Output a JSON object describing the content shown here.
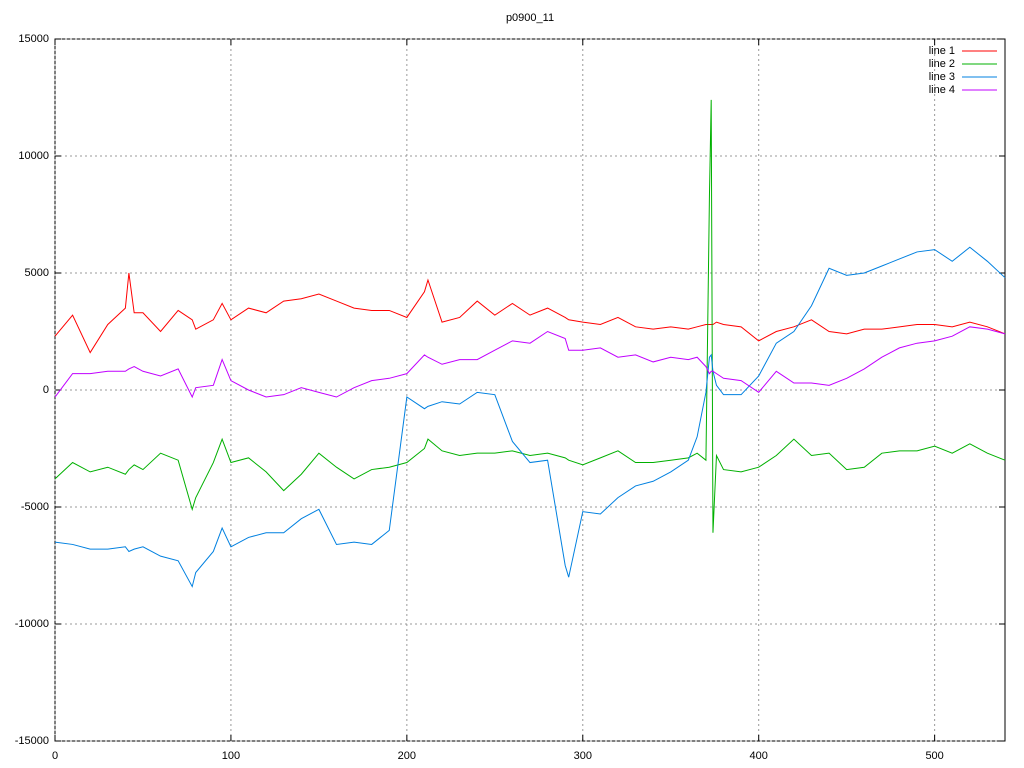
{
  "chart_data": {
    "type": "line",
    "title": "p0900_11",
    "x": [
      0,
      10,
      20,
      30,
      40,
      42,
      45,
      50,
      60,
      70,
      78,
      80,
      90,
      95,
      100,
      110,
      120,
      130,
      140,
      150,
      160,
      170,
      180,
      190,
      200,
      210,
      212,
      220,
      230,
      240,
      250,
      260,
      270,
      280,
      290,
      292,
      300,
      310,
      320,
      330,
      340,
      350,
      360,
      365,
      370,
      372,
      373,
      374,
      376,
      380,
      390,
      400,
      410,
      420,
      430,
      440,
      450,
      460,
      470,
      480,
      490,
      500,
      510,
      520,
      530,
      540
    ],
    "series": [
      {
        "name": "line 1",
        "color": "#ff0000",
        "values": [
          2300,
          3200,
          1600,
          2800,
          3500,
          5000,
          3300,
          3300,
          2500,
          3400,
          3000,
          2600,
          3000,
          3700,
          3000,
          3500,
          3300,
          3800,
          3900,
          4100,
          3800,
          3500,
          3400,
          3400,
          3100,
          4200,
          4700,
          2900,
          3100,
          3800,
          3200,
          3700,
          3200,
          3500,
          3100,
          3000,
          2900,
          2800,
          3100,
          2700,
          2600,
          2700,
          2600,
          2700,
          2800,
          2800,
          2800,
          2800,
          2900,
          2800,
          2700,
          2100,
          2500,
          2700,
          3000,
          2500,
          2400,
          2600,
          2600,
          2700,
          2800,
          2800,
          2700,
          2900,
          2700,
          2400
        ]
      },
      {
        "name": "line 2",
        "color": "#00b000",
        "values": [
          -3800,
          -3100,
          -3500,
          -3300,
          -3600,
          -3400,
          -3200,
          -3400,
          -2700,
          -3000,
          -5100,
          -4600,
          -3100,
          -2100,
          -3100,
          -2900,
          -3500,
          -4300,
          -3600,
          -2700,
          -3300,
          -3800,
          -3400,
          -3300,
          -3100,
          -2500,
          -2100,
          -2600,
          -2800,
          -2700,
          -2700,
          -2600,
          -2800,
          -2700,
          -2900,
          -3000,
          -3200,
          -2900,
          -2600,
          -3100,
          -3100,
          -3000,
          -2900,
          -2700,
          -3000,
          8300,
          12400,
          -6100,
          -2800,
          -3400,
          -3500,
          -3300,
          -2800,
          -2100,
          -2800,
          -2700,
          -3400,
          -3300,
          -2700,
          -2600,
          -2600,
          -2400,
          -2700,
          -2300,
          -2700,
          -3000
        ]
      },
      {
        "name": "line 3",
        "color": "#0080e0",
        "values": [
          -6500,
          -6600,
          -6800,
          -6800,
          -6700,
          -6900,
          -6800,
          -6700,
          -7100,
          -7300,
          -8400,
          -7800,
          -6900,
          -5900,
          -6700,
          -6300,
          -6100,
          -6100,
          -5500,
          -5100,
          -6600,
          -6500,
          -6600,
          -6000,
          -300,
          -800,
          -700,
          -500,
          -600,
          -100,
          -200,
          -2200,
          -3100,
          -3000,
          -7500,
          -8000,
          -5200,
          -5300,
          -4600,
          -4100,
          -3900,
          -3500,
          -3000,
          -2000,
          -100,
          1400,
          1500,
          800,
          200,
          -200,
          -200,
          600,
          2000,
          2500,
          3600,
          5200,
          4900,
          5000,
          5300,
          5600,
          5900,
          6000,
          5500,
          6100,
          5500,
          4800
        ]
      },
      {
        "name": "line 4",
        "color": "#c000ff",
        "values": [
          -300,
          700,
          700,
          800,
          800,
          900,
          1000,
          800,
          600,
          900,
          -300,
          100,
          200,
          1300,
          400,
          0,
          -300,
          -200,
          100,
          -100,
          -300,
          100,
          400,
          500,
          700,
          1500,
          1400,
          1100,
          1300,
          1300,
          1700,
          2100,
          2000,
          2500,
          2200,
          1700,
          1700,
          1800,
          1400,
          1500,
          1200,
          1400,
          1300,
          1400,
          1000,
          700,
          800,
          800,
          700,
          500,
          400,
          -100,
          800,
          300,
          300,
          200,
          500,
          900,
          1400,
          1800,
          2000,
          2100,
          2300,
          2700,
          2600,
          2400
        ]
      }
    ],
    "xlim": [
      0,
      540
    ],
    "xticks": [
      0,
      100,
      200,
      300,
      400,
      500
    ],
    "ylim": [
      -15000,
      15000
    ],
    "yticks": [
      -15000,
      -10000,
      -5000,
      0,
      5000,
      10000,
      15000
    ],
    "grid": true,
    "legend": "top-right"
  }
}
